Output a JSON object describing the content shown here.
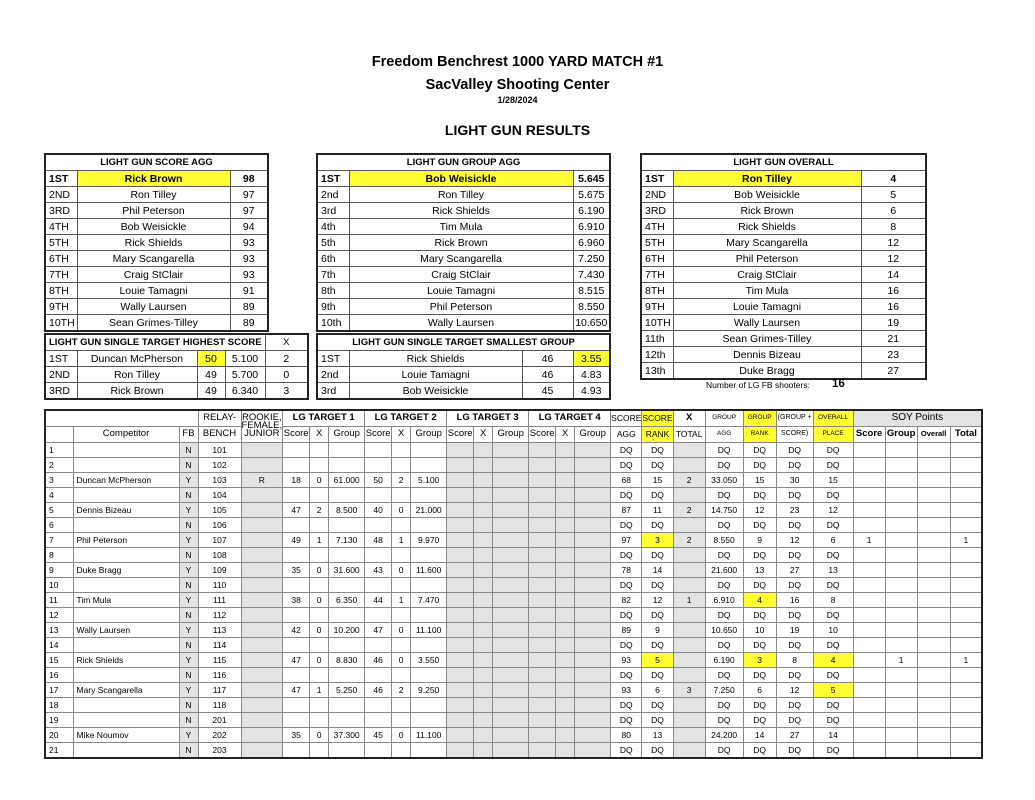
{
  "header": {
    "line1": "Freedom Benchrest 1000 YARD MATCH #1",
    "line2": "SacValley Shooting Center",
    "date": "1/28/2024",
    "section": "LIGHT GUN RESULTS"
  },
  "score_agg": {
    "title": "LIGHT GUN SCORE AGG",
    "rows": [
      [
        "1ST",
        "Rick Brown",
        "98"
      ],
      [
        "2ND",
        "Ron Tilley",
        "97"
      ],
      [
        "3RD",
        "Phil Peterson",
        "97"
      ],
      [
        "4TH",
        "Bob Weisickle",
        "94"
      ],
      [
        "5TH",
        "Rick Shields",
        "93"
      ],
      [
        "6TH",
        "Mary Scangarella",
        "93"
      ],
      [
        "7TH",
        "Craig StClair",
        "93"
      ],
      [
        "8TH",
        "Louie Tamagni",
        "91"
      ],
      [
        "9TH",
        "Wally Laursen",
        "89"
      ],
      [
        "10TH",
        "Sean Grimes-Tilley",
        "89"
      ]
    ]
  },
  "group_agg": {
    "title": "LIGHT GUN GROUP AGG",
    "rows": [
      [
        "1ST",
        "Bob Weisickle",
        "5.645"
      ],
      [
        "2nd",
        "Ron Tilley",
        "5.675"
      ],
      [
        "3rd",
        "Rick Shields",
        "6.190"
      ],
      [
        "4th",
        "Tim Mula",
        "6.910"
      ],
      [
        "5th",
        "Rick Brown",
        "6.960"
      ],
      [
        "6th",
        "Mary Scangarella",
        "7.250"
      ],
      [
        "7th",
        "Craig StClair",
        "7.430"
      ],
      [
        "8th",
        "Louie Tamagni",
        "8.515"
      ],
      [
        "9th",
        "Phil Peterson",
        "8.550"
      ],
      [
        "10th",
        "Wally Laursen",
        "10.650"
      ]
    ]
  },
  "overall": {
    "title": "LIGHT GUN OVERALL",
    "rows": [
      [
        "1ST",
        "Ron Tilley",
        "4"
      ],
      [
        "2ND",
        "Bob Weisickle",
        "5"
      ],
      [
        "3RD",
        "Rick Brown",
        "6"
      ],
      [
        "4TH",
        "Rick Shields",
        "8"
      ],
      [
        "5TH",
        "Mary Scangarella",
        "12"
      ],
      [
        "6TH",
        "Phil Peterson",
        "12"
      ],
      [
        "7TH",
        "Craig StClair",
        "14"
      ],
      [
        "8TH",
        "Tim Mula",
        "16"
      ],
      [
        "9TH",
        "Louie Tamagni",
        "16"
      ],
      [
        "10TH",
        "Wally Laursen",
        "19"
      ],
      [
        "11th",
        "Sean Grimes-Tilley",
        "21"
      ],
      [
        "12th",
        "Dennis Bizeau",
        "23"
      ],
      [
        "13th",
        "Duke Bragg",
        "27"
      ]
    ]
  },
  "single_high": {
    "title": "LIGHT GUN SINGLE TARGET HIGHEST SCORE",
    "x_label": "X",
    "rows": [
      [
        "1ST",
        "Duncan McPherson",
        "50",
        "5.100",
        "2"
      ],
      [
        "2ND",
        "Ron Tilley",
        "49",
        "5.700",
        "0"
      ],
      [
        "3RD",
        "Rick Brown",
        "49",
        "6.340",
        "3"
      ]
    ]
  },
  "single_small": {
    "title": "LIGHT GUN SINGLE TARGET SMALLEST GROUP",
    "rows": [
      [
        "1ST",
        "Rick Shields",
        "46",
        "3.55"
      ],
      [
        "2nd",
        "Louie Tamagni",
        "46",
        "4.83"
      ],
      [
        "3rd",
        "Bob Weisickle",
        "45",
        "4.93"
      ]
    ]
  },
  "shooters": {
    "label": "Number of LG FB shooters:",
    "value": "16"
  },
  "results": {
    "headers": {
      "relay": "RELAY-",
      "bench": "BENCH",
      "rfj": "ROOKIE, FEMALE, JUNIOR",
      "t1": "LG TARGET 1",
      "t2": "LG TARGET 2",
      "t3": "LG TARGET 3",
      "t4": "LG TARGET 4",
      "score_top": "SCORE",
      "score_bot": "AGG",
      "srank_top": "SCORE",
      "srank_bot": "RANK",
      "x_top": "X",
      "x_bot": "TOTAL",
      "gagg_top": "GROUP",
      "gagg_bot": "AGG",
      "grank_top": "GROUP",
      "grank_bot": "RANK",
      "sum_top": "(GROUP +",
      "sum_bot": "SCORE)",
      "op_top": "OVERALL",
      "op_bot": "PLACE",
      "soy": "SOY Points",
      "competitor": "Competitor",
      "fb": "FB",
      "score": "Score",
      "x": "X",
      "group": "Group",
      "soy_score": "Score",
      "soy_group": "Group",
      "soy_overall": "Overall",
      "soy_total": "Total"
    },
    "rows": [
      [
        "1",
        "",
        "N",
        "101",
        "",
        "",
        "",
        "",
        "",
        "",
        "",
        "",
        "",
        "",
        "",
        "",
        "",
        "DQ",
        "DQ",
        "",
        "DQ",
        "DQ",
        "DQ",
        "DQ",
        "",
        "",
        "",
        ""
      ],
      [
        "2",
        "",
        "N",
        "102",
        "",
        "",
        "",
        "",
        "",
        "",
        "",
        "",
        "",
        "",
        "",
        "",
        "",
        "DQ",
        "DQ",
        "",
        "DQ",
        "DQ",
        "DQ",
        "DQ",
        "",
        "",
        "",
        ""
      ],
      [
        "3",
        "Duncan McPherson",
        "Y",
        "103",
        "R",
        "18",
        "0",
        "61.000",
        "50",
        "2",
        "5.100",
        "",
        "",
        "",
        "",
        "",
        "",
        "68",
        "15",
        "2",
        "33.050",
        "15",
        "30",
        "15",
        "",
        "",
        "",
        ""
      ],
      [
        "4",
        "",
        "N",
        "104",
        "",
        "",
        "",
        "",
        "",
        "",
        "",
        "",
        "",
        "",
        "",
        "",
        "",
        "DQ",
        "DQ",
        "",
        "DQ",
        "DQ",
        "DQ",
        "DQ",
        "",
        "",
        "",
        ""
      ],
      [
        "5",
        "Dennis Bizeau",
        "Y",
        "105",
        "",
        "47",
        "2",
        "8.500",
        "40",
        "0",
        "21.000",
        "",
        "",
        "",
        "",
        "",
        "",
        "87",
        "11",
        "2",
        "14.750",
        "12",
        "23",
        "12",
        "",
        "",
        "",
        ""
      ],
      [
        "6",
        "",
        "N",
        "106",
        "",
        "",
        "",
        "",
        "",
        "",
        "",
        "",
        "",
        "",
        "",
        "",
        "",
        "DQ",
        "DQ",
        "",
        "DQ",
        "DQ",
        "DQ",
        "DQ",
        "",
        "",
        "",
        ""
      ],
      [
        "7",
        "Phil Peterson",
        "Y",
        "107",
        "",
        "49",
        "1",
        "7.130",
        "48",
        "1",
        "9.970",
        "",
        "",
        "",
        "",
        "",
        "",
        "97",
        "3",
        "2",
        "8.550",
        "9",
        "12",
        "6",
        "1",
        "",
        "",
        "1"
      ],
      [
        "8",
        "",
        "N",
        "108",
        "",
        "",
        "",
        "",
        "",
        "",
        "",
        "",
        "",
        "",
        "",
        "",
        "",
        "DQ",
        "DQ",
        "",
        "DQ",
        "DQ",
        "DQ",
        "DQ",
        "",
        "",
        "",
        ""
      ],
      [
        "9",
        "Duke Bragg",
        "Y",
        "109",
        "",
        "35",
        "0",
        "31.600",
        "43",
        "0",
        "11.600",
        "",
        "",
        "",
        "",
        "",
        "",
        "78",
        "14",
        "",
        "21.600",
        "13",
        "27",
        "13",
        "",
        "",
        "",
        ""
      ],
      [
        "10",
        "",
        "N",
        "110",
        "",
        "",
        "",
        "",
        "",
        "",
        "",
        "",
        "",
        "",
        "",
        "",
        "",
        "DQ",
        "DQ",
        "",
        "DQ",
        "DQ",
        "DQ",
        "DQ",
        "",
        "",
        "",
        ""
      ],
      [
        "11",
        "Tim Mula",
        "Y",
        "111",
        "",
        "38",
        "0",
        "6.350",
        "44",
        "1",
        "7.470",
        "",
        "",
        "",
        "",
        "",
        "",
        "82",
        "12",
        "1",
        "6.910",
        "4",
        "16",
        "8",
        "",
        "",
        "",
        ""
      ],
      [
        "12",
        "",
        "N",
        "112",
        "",
        "",
        "",
        "",
        "",
        "",
        "",
        "",
        "",
        "",
        "",
        "",
        "",
        "DQ",
        "DQ",
        "",
        "DQ",
        "DQ",
        "DQ",
        "DQ",
        "",
        "",
        "",
        ""
      ],
      [
        "13",
        "Wally Laursen",
        "Y",
        "113",
        "",
        "42",
        "0",
        "10.200",
        "47",
        "0",
        "11.100",
        "",
        "",
        "",
        "",
        "",
        "",
        "89",
        "9",
        "",
        "10.650",
        "10",
        "19",
        "10",
        "",
        "",
        "",
        ""
      ],
      [
        "14",
        "",
        "N",
        "114",
        "",
        "",
        "",
        "",
        "",
        "",
        "",
        "",
        "",
        "",
        "",
        "",
        "",
        "DQ",
        "DQ",
        "",
        "DQ",
        "DQ",
        "DQ",
        "DQ",
        "",
        "",
        "",
        ""
      ],
      [
        "15",
        "Rick Shields",
        "Y",
        "115",
        "",
        "47",
        "0",
        "8.830",
        "46",
        "0",
        "3.550",
        "",
        "",
        "",
        "",
        "",
        "",
        "93",
        "5",
        "",
        "6.190",
        "3",
        "8",
        "4",
        "",
        "1",
        "",
        "1"
      ],
      [
        "16",
        "",
        "N",
        "116",
        "",
        "",
        "",
        "",
        "",
        "",
        "",
        "",
        "",
        "",
        "",
        "",
        "",
        "DQ",
        "DQ",
        "",
        "DQ",
        "DQ",
        "DQ",
        "DQ",
        "",
        "",
        "",
        ""
      ],
      [
        "17",
        "Mary Scangarella",
        "Y",
        "117",
        "",
        "47",
        "1",
        "5.250",
        "46",
        "2",
        "9.250",
        "",
        "",
        "",
        "",
        "",
        "",
        "93",
        "6",
        "3",
        "7.250",
        "6",
        "12",
        "5",
        "",
        "",
        "",
        ""
      ],
      [
        "18",
        "",
        "N",
        "118",
        "",
        "",
        "",
        "",
        "",
        "",
        "",
        "",
        "",
        "",
        "",
        "",
        "",
        "DQ",
        "DQ",
        "",
        "DQ",
        "DQ",
        "DQ",
        "DQ",
        "",
        "",
        "",
        ""
      ],
      [
        "19",
        "",
        "N",
        "201",
        "",
        "",
        "",
        "",
        "",
        "",
        "",
        "",
        "",
        "",
        "",
        "",
        "",
        "DQ",
        "DQ",
        "",
        "DQ",
        "DQ",
        "DQ",
        "DQ",
        "",
        "",
        "",
        ""
      ],
      [
        "20",
        "Mike Noumov",
        "Y",
        "202",
        "",
        "35",
        "0",
        "37.300",
        "45",
        "0",
        "11.100",
        "",
        "",
        "",
        "",
        "",
        "",
        "80",
        "13",
        "",
        "24.200",
        "14",
        "27",
        "14",
        "",
        "",
        "",
        ""
      ],
      [
        "21",
        "",
        "N",
        "203",
        "",
        "",
        "",
        "",
        "",
        "",
        "",
        "",
        "",
        "",
        "",
        "",
        "",
        "DQ",
        "DQ",
        "",
        "DQ",
        "DQ",
        "DQ",
        "DQ",
        "",
        "",
        "",
        ""
      ]
    ],
    "highlights": [
      [
        6,
        18
      ],
      [
        10,
        21
      ],
      [
        14,
        18
      ],
      [
        14,
        21
      ],
      [
        14,
        23
      ],
      [
        16,
        23
      ]
    ],
    "highlight_color": "#ffff33",
    "shade_color": "#e3e3e3"
  }
}
